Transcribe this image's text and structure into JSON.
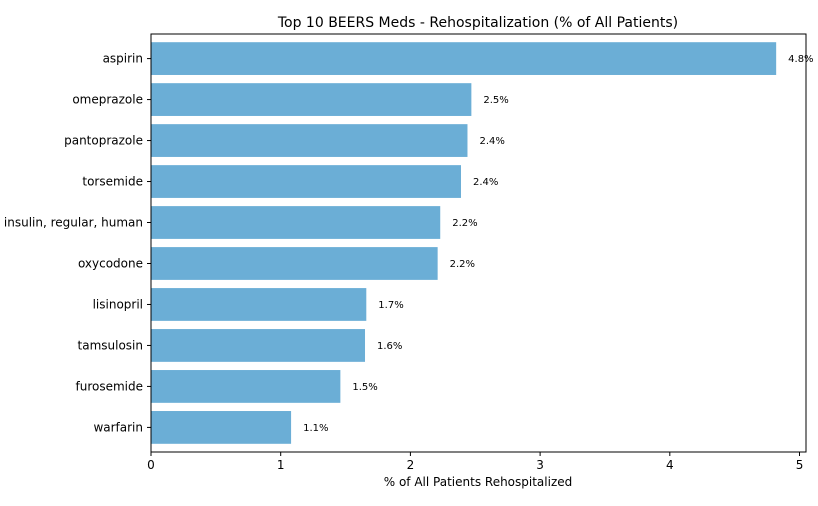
{
  "chart_data": {
    "type": "bar",
    "orientation": "horizontal",
    "title": "Top 10 BEERS Meds - Rehospitalization (% of All Patients)",
    "xlabel": "% of All Patients Rehospitalized",
    "ylabel": "",
    "xlim": [
      0,
      5.05
    ],
    "xticks": [
      0,
      1,
      2,
      3,
      4,
      5
    ],
    "grid": false,
    "bar_color": "#6baed6",
    "categories": [
      "aspirin",
      "omeprazole",
      "pantoprazole",
      "torsemide",
      "insulin, regular, human",
      "oxycodone",
      "lisinopril",
      "tamsulosin",
      "furosemide",
      "warfarin"
    ],
    "values": [
      4.82,
      2.47,
      2.44,
      2.39,
      2.23,
      2.21,
      1.66,
      1.65,
      1.46,
      1.08
    ],
    "data_labels": [
      "4.8%",
      "2.5%",
      "2.4%",
      "2.4%",
      "2.2%",
      "2.2%",
      "1.7%",
      "1.6%",
      "1.5%",
      "1.1%"
    ]
  }
}
